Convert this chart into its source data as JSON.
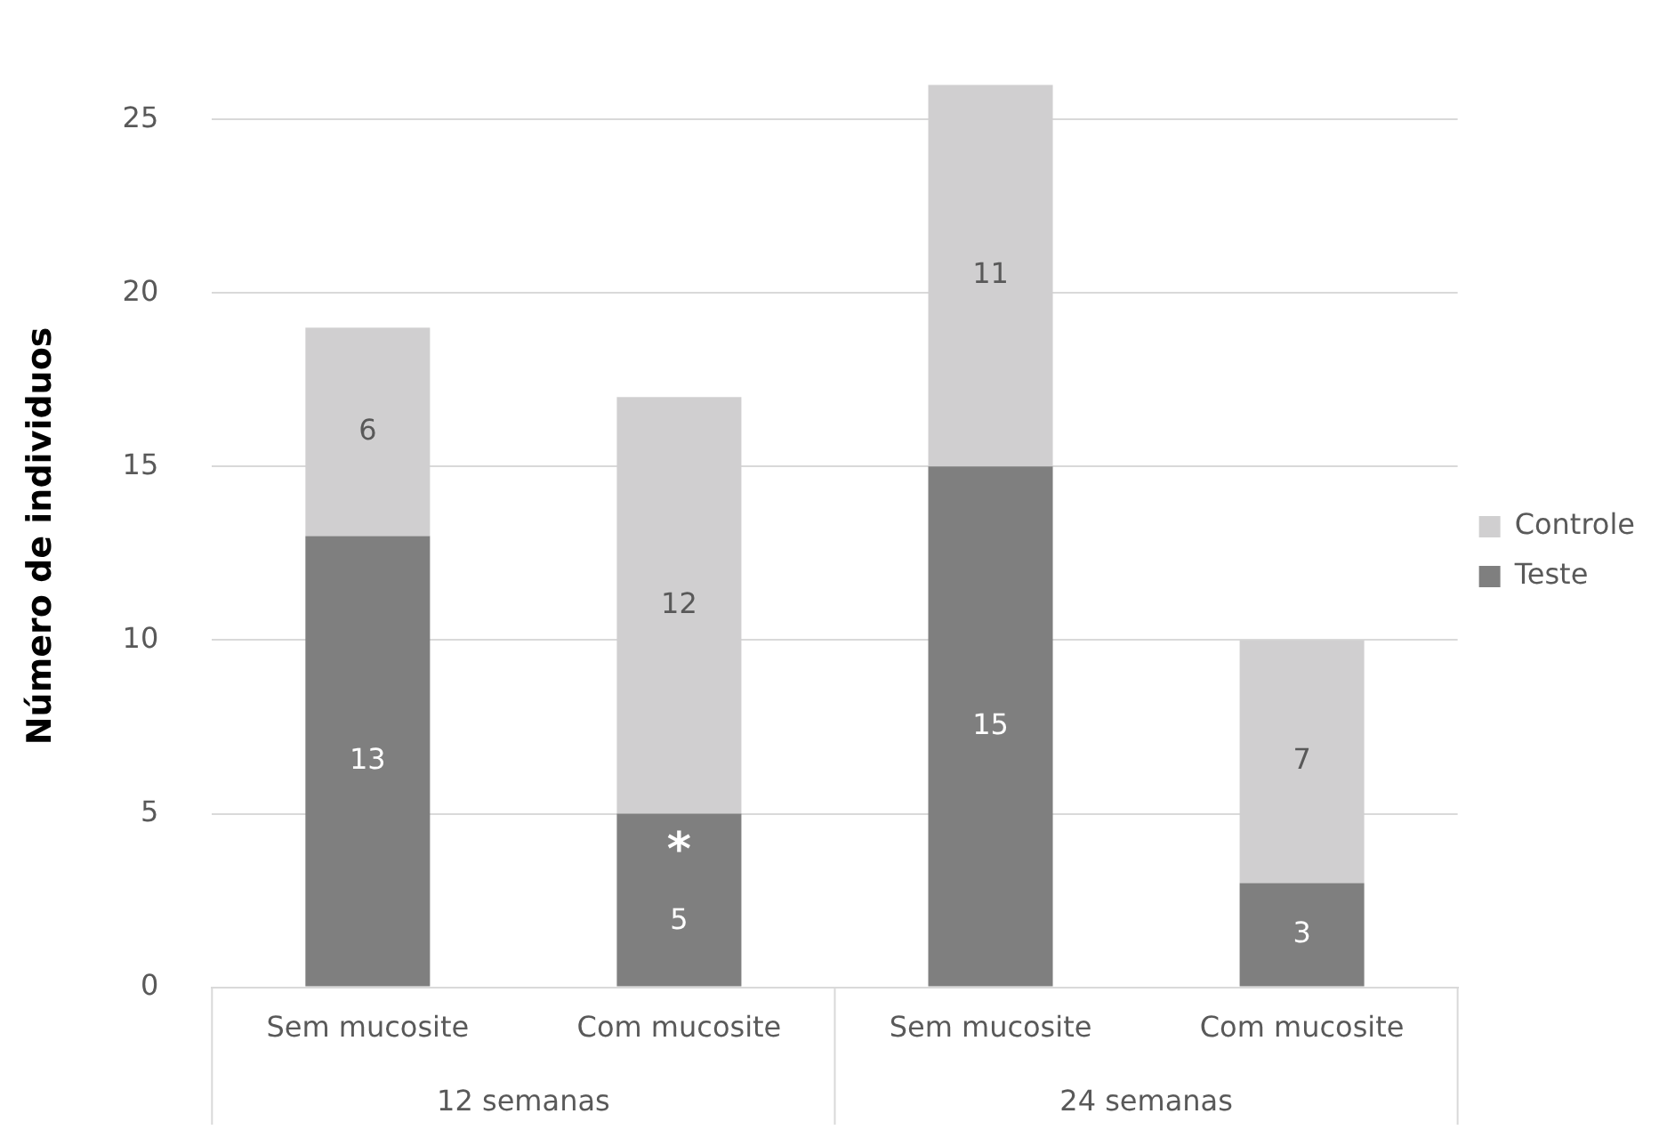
{
  "chart_data": {
    "type": "bar",
    "stacked": true,
    "ylabel": "Número de individuos",
    "categories": [
      "Sem mucosite",
      "Com mucosite",
      "Sem mucosite",
      "Com mucosite"
    ],
    "series": [
      {
        "name": "Teste",
        "color": "#7f7f7f",
        "values": [
          13,
          5,
          15,
          3
        ]
      },
      {
        "name": "Controle",
        "color": "#d0cfd0",
        "values": [
          6,
          12,
          11,
          7
        ]
      }
    ],
    "ylim": [
      0,
      26
    ],
    "yticks": [
      0,
      5,
      10,
      15,
      20,
      25
    ],
    "grid": "y",
    "legend": "right",
    "data_labels": true,
    "annotations": [
      "12 semanas",
      "24 semanas",
      {
        "text": "*",
        "x": "Com mucosite",
        "y": 5
      }
    ]
  }
}
